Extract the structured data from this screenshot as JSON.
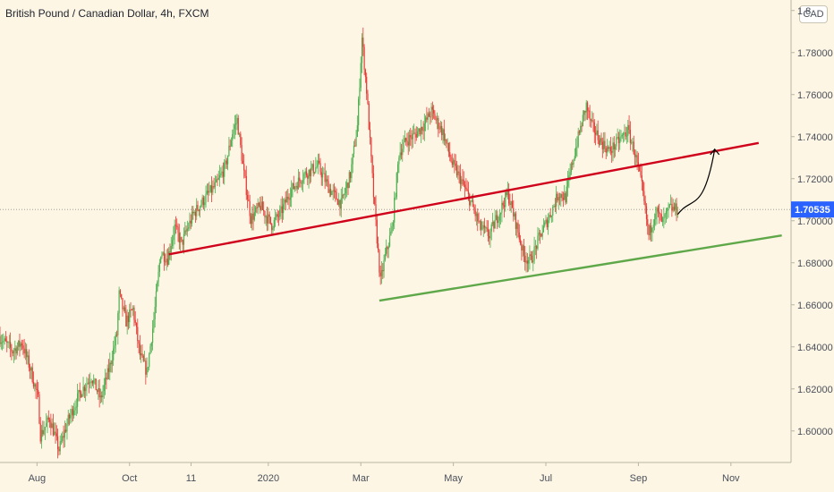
{
  "header": {
    "title": "British Pound / Canadian Dollar, 4h, FXCM",
    "currency": "CAD"
  },
  "colors": {
    "background": "#FDF6E4",
    "up_candle": "#4CAF50",
    "down_candle": "#E53935",
    "resistance_line": "#D0021B",
    "support_line": "#5FA84A",
    "price_label_bg": "#2962FF",
    "projection": "#000000",
    "axis_text": "#4a4f5a"
  },
  "chart_data": {
    "type": "candlestick",
    "title": "British Pound / Canadian Dollar, 4h, FXCM",
    "ylim": [
      1.585,
      1.805
    ],
    "y_ticks": [
      "1.60000",
      "1.62000",
      "1.64000",
      "1.66000",
      "1.68000",
      "1.70000",
      "1.72000",
      "1.74000",
      "1.76000",
      "1.78000",
      "1.8"
    ],
    "x_ticks": [
      "Aug",
      "Oct",
      "11",
      "2020",
      "Mar",
      "May",
      "Jul",
      "Sep",
      "Nov"
    ],
    "x_tick_months": [
      0,
      2,
      3.33,
      5,
      7,
      9,
      11,
      13,
      15
    ],
    "x_range_months": [
      -0.8,
      16.3
    ],
    "last_price": "1.70535",
    "last_price_value": 1.70535,
    "price_path": [
      [
        -0.8,
        1.645
      ],
      [
        -0.5,
        1.638
      ],
      [
        -0.3,
        1.642
      ],
      [
        -0.1,
        1.628
      ],
      [
        0.05,
        1.615
      ],
      [
        0.1,
        1.598
      ],
      [
        0.3,
        1.606
      ],
      [
        0.5,
        1.591
      ],
      [
        0.7,
        1.605
      ],
      [
        0.95,
        1.618
      ],
      [
        1.2,
        1.626
      ],
      [
        1.4,
        1.615
      ],
      [
        1.6,
        1.631
      ],
      [
        1.75,
        1.646
      ],
      [
        1.8,
        1.665
      ],
      [
        1.95,
        1.652
      ],
      [
        2.1,
        1.658
      ],
      [
        2.25,
        1.636
      ],
      [
        2.4,
        1.628
      ],
      [
        2.55,
        1.653
      ],
      [
        2.7,
        1.685
      ],
      [
        2.85,
        1.682
      ],
      [
        3.0,
        1.697
      ],
      [
        3.15,
        1.689
      ],
      [
        3.4,
        1.703
      ],
      [
        3.7,
        1.712
      ],
      [
        3.9,
        1.717
      ],
      [
        4.1,
        1.726
      ],
      [
        4.25,
        1.742
      ],
      [
        4.35,
        1.748
      ],
      [
        4.5,
        1.722
      ],
      [
        4.65,
        1.701
      ],
      [
        4.85,
        1.707
      ],
      [
        5.1,
        1.698
      ],
      [
        5.3,
        1.704
      ],
      [
        5.5,
        1.714
      ],
      [
        5.8,
        1.722
      ],
      [
        6.1,
        1.726
      ],
      [
        6.35,
        1.715
      ],
      [
        6.6,
        1.708
      ],
      [
        6.8,
        1.722
      ],
      [
        6.95,
        1.745
      ],
      [
        7.05,
        1.787
      ],
      [
        7.15,
        1.762
      ],
      [
        7.3,
        1.712
      ],
      [
        7.45,
        1.671
      ],
      [
        7.55,
        1.683
      ],
      [
        7.7,
        1.696
      ],
      [
        7.85,
        1.732
      ],
      [
        8.0,
        1.738
      ],
      [
        8.2,
        1.741
      ],
      [
        8.4,
        1.746
      ],
      [
        8.55,
        1.752
      ],
      [
        8.8,
        1.742
      ],
      [
        9.0,
        1.727
      ],
      [
        9.2,
        1.719
      ],
      [
        9.4,
        1.709
      ],
      [
        9.6,
        1.697
      ],
      [
        9.8,
        1.693
      ],
      [
        10.0,
        1.703
      ],
      [
        10.2,
        1.713
      ],
      [
        10.4,
        1.697
      ],
      [
        10.55,
        1.683
      ],
      [
        10.7,
        1.681
      ],
      [
        10.9,
        1.693
      ],
      [
        11.1,
        1.702
      ],
      [
        11.3,
        1.713
      ],
      [
        11.45,
        1.711
      ],
      [
        11.6,
        1.728
      ],
      [
        11.75,
        1.742
      ],
      [
        11.9,
        1.755
      ],
      [
        12.0,
        1.746
      ],
      [
        12.2,
        1.738
      ],
      [
        12.4,
        1.733
      ],
      [
        12.6,
        1.738
      ],
      [
        12.8,
        1.743
      ],
      [
        12.95,
        1.732
      ],
      [
        13.1,
        1.716
      ],
      [
        13.25,
        1.693
      ],
      [
        13.4,
        1.705
      ],
      [
        13.55,
        1.699
      ],
      [
        13.7,
        1.706
      ],
      [
        13.85,
        1.70535
      ]
    ],
    "resistance_line": {
      "x": [
        2.85,
        15.6
      ],
      "y": [
        1.684,
        1.737
      ]
    },
    "support_line": {
      "x": [
        7.4,
        16.1
      ],
      "y": [
        1.662,
        1.693
      ]
    },
    "projection_path": [
      [
        13.85,
        1.703
      ],
      [
        14.15,
        1.712
      ],
      [
        14.4,
        1.709
      ],
      [
        14.65,
        1.734
      ]
    ]
  }
}
